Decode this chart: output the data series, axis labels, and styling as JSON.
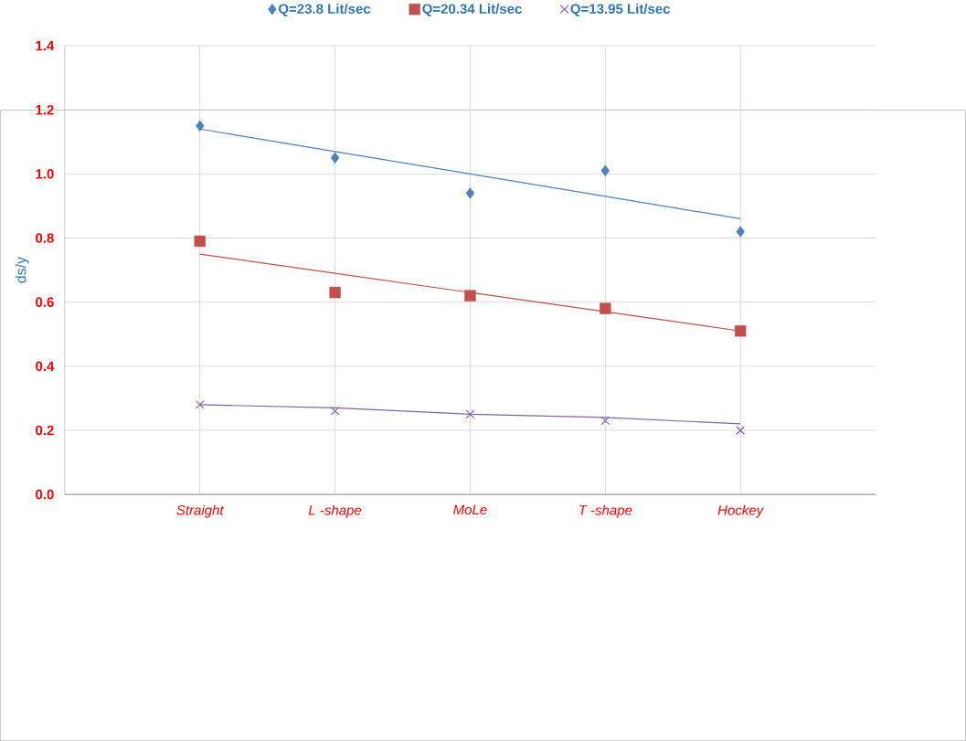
{
  "chart_data": {
    "type": "scatter",
    "ylabel": "ds/y",
    "categories": [
      "Straight",
      "L -shape",
      "MoLe",
      "T -shape",
      "Hockey"
    ],
    "series": [
      {
        "name": "Q=23.8 Lit/sec",
        "color": "#4f81bd",
        "marker": "diamond",
        "values": [
          1.15,
          1.05,
          0.94,
          1.01,
          0.82
        ]
      },
      {
        "name": "Q=20.34 Lit/sec",
        "color": "#c0504d",
        "marker": "square",
        "values": [
          0.79,
          0.63,
          0.62,
          0.58,
          0.51
        ]
      },
      {
        "name": "Q=13.95 Lit/sec",
        "color": "#8064a2",
        "marker": "cross",
        "values": [
          0.28,
          0.26,
          0.25,
          0.23,
          0.2
        ]
      },
      {
        "type": "line",
        "color": "#4f81bd",
        "marker": "none",
        "values": [
          1.14,
          1.07,
          1.0,
          0.93,
          0.86
        ]
      },
      {
        "type": "line",
        "color": "#c0504d",
        "marker": "none",
        "values": [
          0.75,
          0.69,
          0.63,
          0.57,
          0.51
        ]
      },
      {
        "type": "line",
        "color": "#8064a2",
        "marker": "none",
        "values": [
          0.28,
          0.27,
          0.25,
          0.24,
          0.22
        ]
      }
    ],
    "ylim": [
      0,
      1.4
    ],
    "yticks": [
      {
        "value": 0,
        "label": "0.0"
      },
      {
        "value": 0.2,
        "label": "0.2"
      },
      {
        "value": 0.4,
        "label": "0.4"
      },
      {
        "value": 0.6,
        "label": "0.6"
      },
      {
        "value": 0.8,
        "label": "0.8"
      },
      {
        "value": 1.0,
        "label": "1.0"
      },
      {
        "value": 1.2,
        "label": "1.2"
      },
      {
        "value": 1.4,
        "label": "1.4"
      }
    ],
    "grid": true,
    "legend": "top"
  }
}
